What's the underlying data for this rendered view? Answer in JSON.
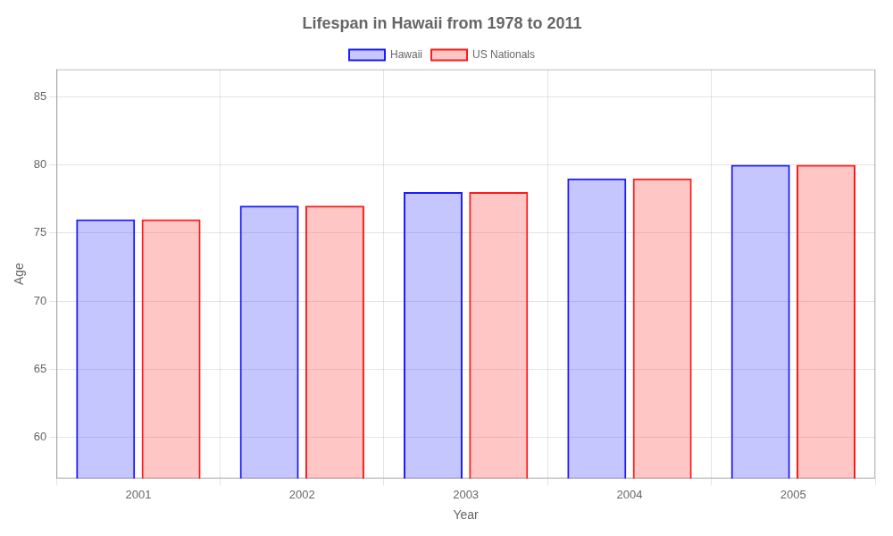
{
  "chart_data": {
    "type": "bar",
    "title": "Lifespan in Hawaii from 1978 to 2011",
    "xlabel": "Year",
    "ylabel": "Age",
    "categories": [
      "2001",
      "2002",
      "2003",
      "2004",
      "2005"
    ],
    "series": [
      {
        "name": "Hawaii",
        "color": "#1a1aff",
        "values": [
          76,
          77,
          78,
          79,
          80
        ]
      },
      {
        "name": "US Nationals",
        "color": "#ff1a1a",
        "values": [
          76,
          77,
          78,
          79,
          80
        ]
      }
    ],
    "ylim": [
      57,
      87
    ],
    "yticks": [
      60,
      65,
      70,
      75,
      80,
      85
    ],
    "grid": true,
    "legend": "top"
  }
}
